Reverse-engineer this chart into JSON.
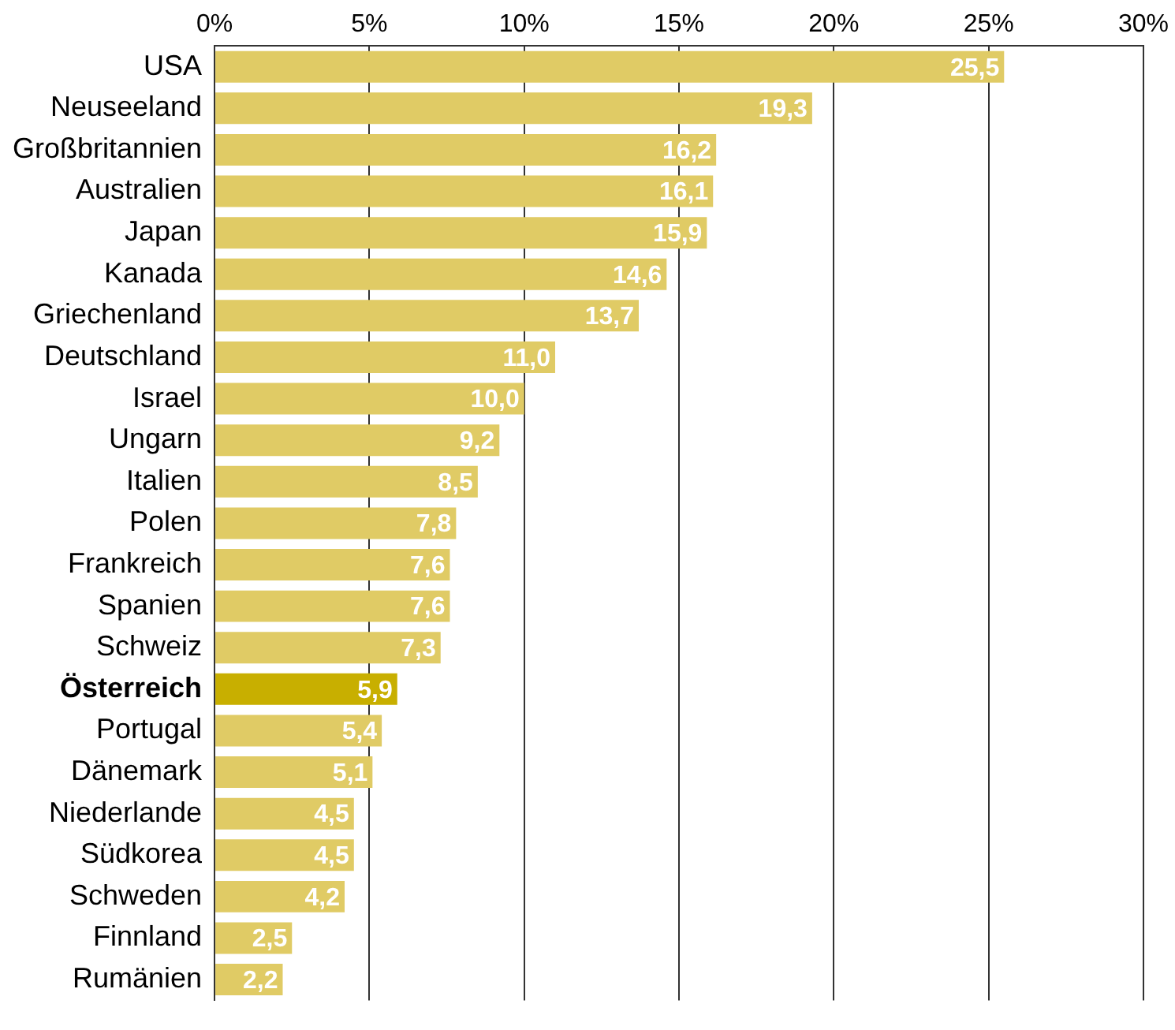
{
  "chart_data": {
    "type": "bar",
    "orientation": "horizontal",
    "categories": [
      "USA",
      "Neuseeland",
      "Großbritannien",
      "Australien",
      "Japan",
      "Kanada",
      "Griechenland",
      "Deutschland",
      "Israel",
      "Ungarn",
      "Italien",
      "Polen",
      "Frankreich",
      "Spanien",
      "Schweiz",
      "Österreich",
      "Portugal",
      "Dänemark",
      "Niederlande",
      "Südkorea",
      "Schweden",
      "Finnland",
      "Rumänien"
    ],
    "values": [
      25.5,
      19.3,
      16.2,
      16.1,
      15.9,
      14.6,
      13.7,
      11.0,
      10.0,
      9.2,
      8.5,
      7.8,
      7.6,
      7.6,
      7.3,
      5.9,
      5.4,
      5.1,
      4.5,
      4.5,
      4.2,
      2.5,
      2.2
    ],
    "value_labels": [
      "25,5",
      "19,3",
      "16,2",
      "16,1",
      "15,9",
      "14,6",
      "13,7",
      "11,0",
      "10,0",
      "9,2",
      "8,5",
      "7,8",
      "7,6",
      "7,6",
      "7,3",
      "5,9",
      "5,4",
      "5,1",
      "4,5",
      "4,5",
      "4,2",
      "2,5",
      "2,2"
    ],
    "colors": [
      "#e0cb65",
      "#e0cb65",
      "#e0cb65",
      "#e0cb65",
      "#e0cb65",
      "#e0cb65",
      "#e0cb65",
      "#e0cb65",
      "#e0cb65",
      "#e0cb65",
      "#e0cb65",
      "#e0cb65",
      "#e0cb65",
      "#e0cb65",
      "#e0cb65",
      "#c8af00",
      "#e0cb65",
      "#e0cb65",
      "#e0cb65",
      "#e0cb65",
      "#e0cb65",
      "#e0cb65",
      "#e0cb65"
    ],
    "xlim": [
      0,
      30
    ],
    "xticks": [
      {
        "value": 0,
        "label": "0%"
      },
      {
        "value": 5,
        "label": "5%"
      },
      {
        "value": 10,
        "label": "10%"
      },
      {
        "value": 15,
        "label": "15%"
      },
      {
        "value": 20,
        "label": "20%"
      },
      {
        "value": 25,
        "label": "25%"
      },
      {
        "value": 30,
        "label": "30%"
      }
    ],
    "grid": "x",
    "legend": false
  }
}
